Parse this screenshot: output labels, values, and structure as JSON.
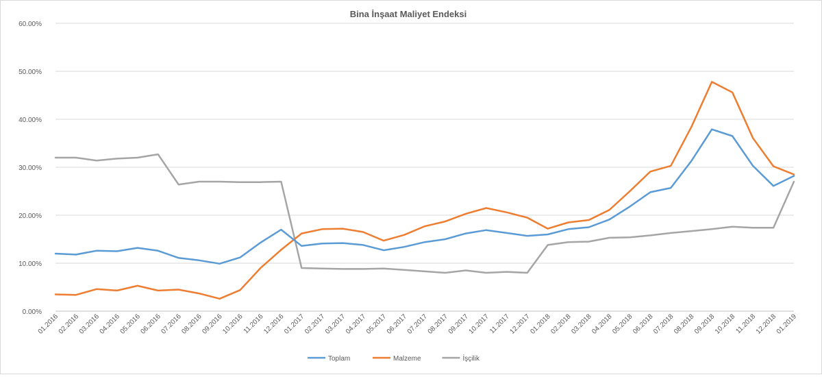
{
  "chart_data": {
    "type": "line",
    "title": "Bina İnşaat Maliyet Endeksi",
    "xlabel": "",
    "ylabel": "",
    "ylim": [
      0,
      60
    ],
    "yticks": [
      "0.00%",
      "10.00%",
      "20.00%",
      "30.00%",
      "40.00%",
      "50.00%",
      "60.00%"
    ],
    "grid": "horizontal",
    "legend_position": "bottom",
    "categories": [
      "01.2016",
      "02.2016",
      "03.2016",
      "04.2016",
      "05.2016",
      "06.2016",
      "07.2016",
      "08.2016",
      "09.2016",
      "10.2016",
      "11.2016",
      "12.2016",
      "01.2017",
      "02.2017",
      "03.2017",
      "04.2017",
      "05.2017",
      "06.2017",
      "07.2017",
      "08.2017",
      "09.2017",
      "10.2017",
      "11.2017",
      "12.2017",
      "01.2018",
      "02.2018",
      "03.2018",
      "04.2018",
      "05.2018",
      "06.2018",
      "07.2018",
      "08.2018",
      "09.2018",
      "10.2018",
      "11.2018",
      "12.2018",
      "01.2019"
    ],
    "series": [
      {
        "name": "Toplam",
        "color": "#5b9bd5",
        "values": [
          12.0,
          11.8,
          12.6,
          12.5,
          13.2,
          12.6,
          11.1,
          10.6,
          9.9,
          11.2,
          14.3,
          17.0,
          13.6,
          14.1,
          14.2,
          13.8,
          12.7,
          13.4,
          14.4,
          15.0,
          16.2,
          16.9,
          16.3,
          15.7,
          16.0,
          17.1,
          17.5,
          19.1,
          21.8,
          24.8,
          25.7,
          31.3,
          37.9,
          36.5,
          30.3,
          26.1,
          28.2
        ]
      },
      {
        "name": "Malzeme",
        "color": "#ed7d31",
        "values": [
          3.5,
          3.4,
          4.6,
          4.3,
          5.3,
          4.3,
          4.5,
          3.7,
          2.6,
          4.4,
          9.0,
          12.8,
          16.2,
          17.1,
          17.2,
          16.5,
          14.7,
          15.9,
          17.7,
          18.7,
          20.3,
          21.5,
          20.6,
          19.5,
          17.2,
          18.5,
          19.0,
          21.1,
          25.0,
          29.1,
          30.3,
          38.4,
          47.8,
          45.6,
          36.1,
          30.2,
          28.5
        ]
      },
      {
        "name": "İşçilik",
        "color": "#a5a5a5",
        "values": [
          32.0,
          32.0,
          31.4,
          31.8,
          32.0,
          32.7,
          26.4,
          27.0,
          27.0,
          26.9,
          26.9,
          27.0,
          9.0,
          8.9,
          8.8,
          8.8,
          8.9,
          8.6,
          8.3,
          8.0,
          8.5,
          8.0,
          8.2,
          8.0,
          13.8,
          14.4,
          14.5,
          15.3,
          15.4,
          15.8,
          16.3,
          16.7,
          17.1,
          17.6,
          17.4,
          17.4,
          27.0
        ]
      }
    ]
  }
}
